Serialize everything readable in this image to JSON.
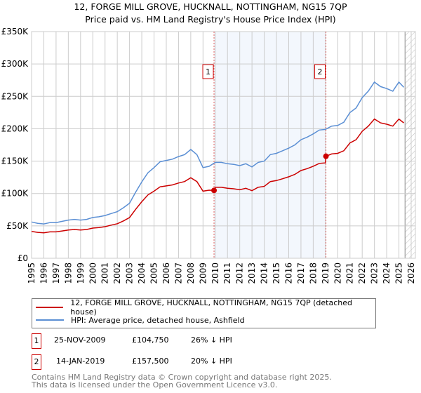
{
  "chart_data": {
    "type": "line",
    "title": "12, FORGE MILL GROVE, HUCKNALL, NOTTINGHAM, NG15 7QP",
    "subtitle": "Price paid vs. HM Land Registry's House Price Index (HPI)",
    "xlim": [
      1995,
      2026
    ],
    "ylim": [
      0,
      350000
    ],
    "x_ticks": [
      "1995",
      "1996",
      "1997",
      "1998",
      "1999",
      "2000",
      "2001",
      "2002",
      "2003",
      "2004",
      "2005",
      "2006",
      "2007",
      "2008",
      "2009",
      "2010",
      "2011",
      "2012",
      "2013",
      "2014",
      "2015",
      "2016",
      "2017",
      "2018",
      "2019",
      "2020",
      "2021",
      "2022",
      "2023",
      "2024",
      "2025",
      "2026"
    ],
    "y_ticks": [
      {
        "v": 0,
        "label": "£0"
      },
      {
        "v": 50000,
        "label": "£50K"
      },
      {
        "v": 100000,
        "label": "£100K"
      },
      {
        "v": 150000,
        "label": "£150K"
      },
      {
        "v": 200000,
        "label": "£200K"
      },
      {
        "v": 250000,
        "label": "£250K"
      },
      {
        "v": 300000,
        "label": "£300K"
      },
      {
        "v": 350000,
        "label": "£350K"
      }
    ],
    "grid": true,
    "shaded_range": [
      2009.9,
      2019.04
    ],
    "forecast_hatch_from": 2025.5,
    "series": [
      {
        "name": "12, FORGE MILL GROVE, HUCKNALL, NOTTINGHAM, NG15 7QP (detached house)",
        "color": "#cc0000",
        "x": [
          1995,
          1995.5,
          1996,
          1996.5,
          1997,
          1997.5,
          1998,
          1998.5,
          1999,
          1999.5,
          2000,
          2000.5,
          2001,
          2001.5,
          2002,
          2002.5,
          2003,
          2003.5,
          2004,
          2004.5,
          2005,
          2005.5,
          2006,
          2006.5,
          2007,
          2007.5,
          2008,
          2008.5,
          2009,
          2009.5,
          2009.9,
          2010,
          2010.5,
          2011,
          2011.5,
          2012,
          2012.5,
          2013,
          2013.5,
          2014,
          2014.5,
          2015,
          2015.5,
          2016,
          2016.5,
          2017,
          2017.5,
          2018,
          2018.5,
          2019,
          2019.04,
          2019.5,
          2020,
          2020.5,
          2021,
          2021.5,
          2022,
          2022.5,
          2023,
          2023.5,
          2024,
          2024.5,
          2025,
          2025.4
        ],
        "values": [
          41400,
          40000,
          39200,
          40700,
          40700,
          42200,
          43700,
          44400,
          43700,
          44400,
          46600,
          47400,
          48800,
          51100,
          53300,
          57700,
          62900,
          75500,
          87300,
          97700,
          103600,
          110300,
          111700,
          113200,
          116200,
          118400,
          124300,
          118400,
          103600,
          105100,
          104750,
          109500,
          109500,
          108000,
          107300,
          105800,
          108000,
          104300,
          109500,
          111000,
          118400,
          119900,
          122800,
          125800,
          129500,
          135400,
          138400,
          142100,
          146500,
          147300,
          157500,
          161000,
          162000,
          166000,
          178000,
          183000,
          196000,
          204000,
          215000,
          209000,
          207000,
          204000,
          215000,
          209000
        ]
      },
      {
        "name": "HPI: Average price, detached house, Ashfield",
        "color": "#5b8fd4",
        "x": [
          1995,
          1995.5,
          1996,
          1996.5,
          1997,
          1997.5,
          1998,
          1998.5,
          1999,
          1999.5,
          2000,
          2000.5,
          2001,
          2001.5,
          2002,
          2002.5,
          2003,
          2003.5,
          2004,
          2004.5,
          2005,
          2005.5,
          2006,
          2006.5,
          2007,
          2007.5,
          2008,
          2008.5,
          2009,
          2009.5,
          2010,
          2010.5,
          2011,
          2011.5,
          2012,
          2012.5,
          2013,
          2013.5,
          2014,
          2014.5,
          2015,
          2015.5,
          2016,
          2016.5,
          2017,
          2017.5,
          2018,
          2018.5,
          2019,
          2019.5,
          2020,
          2020.5,
          2021,
          2021.5,
          2022,
          2022.5,
          2023,
          2023.5,
          2024,
          2024.5,
          2025,
          2025.4
        ],
        "values": [
          56000,
          54000,
          53000,
          55000,
          55000,
          57000,
          59000,
          60000,
          59000,
          60000,
          63000,
          64000,
          66000,
          69000,
          72000,
          78000,
          85000,
          102000,
          118000,
          132000,
          140000,
          149000,
          151000,
          153000,
          157000,
          160000,
          168000,
          160000,
          140000,
          142000,
          148000,
          148000,
          146000,
          145000,
          143000,
          146000,
          141000,
          148000,
          150000,
          160000,
          162000,
          166000,
          170000,
          175000,
          183000,
          187000,
          192000,
          198000,
          199000,
          204000,
          205000,
          210000,
          225000,
          232000,
          248000,
          258000,
          272000,
          265000,
          262000,
          258000,
          272000,
          264000
        ]
      }
    ],
    "annotations": [
      {
        "id": "1",
        "x": 2009.9,
        "y": 104750
      },
      {
        "id": "2",
        "x": 2019.04,
        "y": 157500
      }
    ]
  },
  "legend": {
    "items": [
      {
        "label": "12, FORGE MILL GROVE, HUCKNALL, NOTTINGHAM, NG15 7QP (detached house)",
        "color": "#cc0000"
      },
      {
        "label": "HPI: Average price, detached house, Ashfield",
        "color": "#5b8fd4"
      }
    ]
  },
  "sales": [
    {
      "id": "1",
      "date": "25-NOV-2009",
      "price": "£104,750",
      "hpi": "26% ↓ HPI"
    },
    {
      "id": "2",
      "date": "14-JAN-2019",
      "price": "£157,500",
      "hpi": "20% ↓ HPI"
    }
  ],
  "footer": {
    "line1": "Contains HM Land Registry data © Crown copyright and database right 2025.",
    "line2": "This data is licensed under the Open Government Licence v3.0."
  }
}
